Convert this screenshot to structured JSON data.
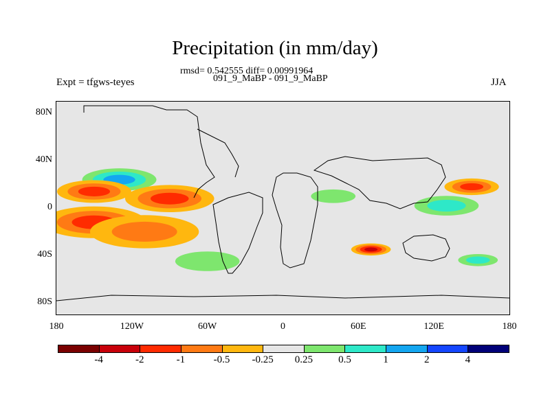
{
  "chart_data": {
    "type": "heatmap",
    "title": "Precipitation (in mm/day)",
    "subtitle_stats": "rmsd= 0.542555 diff= 0.00991964",
    "subtitle_cases": "091_9_MaBP - 091_9_MaBP",
    "left_string": "Expt = tfgws-teyes",
    "right_string": "JJA",
    "xlim": [
      -180,
      180
    ],
    "ylim": [
      -90,
      90
    ],
    "x_ticks": [
      "180",
      "120W",
      "60W",
      "0",
      "60E",
      "120E",
      "180"
    ],
    "y_ticks": [
      "80N",
      "40N",
      "0",
      "40S",
      "80S"
    ],
    "colorbar_levels": [
      "-4",
      "-2",
      "-1",
      "-0.5",
      "-0.25",
      "0.25",
      "0.5",
      "1",
      "2",
      "4"
    ],
    "colorbar_colors": [
      "#7a0000",
      "#c8000a",
      "#ff2b00",
      "#ff7a14",
      "#ffb70f",
      "#e6e6e6",
      "#7ee66e",
      "#2ee8c8",
      "#14a6f0",
      "#1446ff",
      "#000078"
    ],
    "anomaly_regions": [
      {
        "lon": -130,
        "lat": 24,
        "level": 3,
        "radius": 30
      },
      {
        "lon": -150,
        "lat": 14,
        "level": -3,
        "radius": 30
      },
      {
        "lon": -90,
        "lat": 8,
        "level": -3,
        "radius": 36
      },
      {
        "lon": -150,
        "lat": -12,
        "level": -3,
        "radius": 42
      },
      {
        "lon": -110,
        "lat": -20,
        "level": -2,
        "radius": 44
      },
      {
        "lon": 70,
        "lat": -35,
        "level": -4,
        "radius": 16
      },
      {
        "lon": 150,
        "lat": 18,
        "level": -3,
        "radius": 22
      },
      {
        "lon": 130,
        "lat": 2,
        "level": 2,
        "radius": 26
      },
      {
        "lon": 155,
        "lat": -44,
        "level": 2,
        "radius": 16
      },
      {
        "lon": -60,
        "lat": -45,
        "level": 1,
        "radius": 26
      },
      {
        "lon": 40,
        "lat": 10,
        "level": 1,
        "radius": 18
      }
    ]
  }
}
